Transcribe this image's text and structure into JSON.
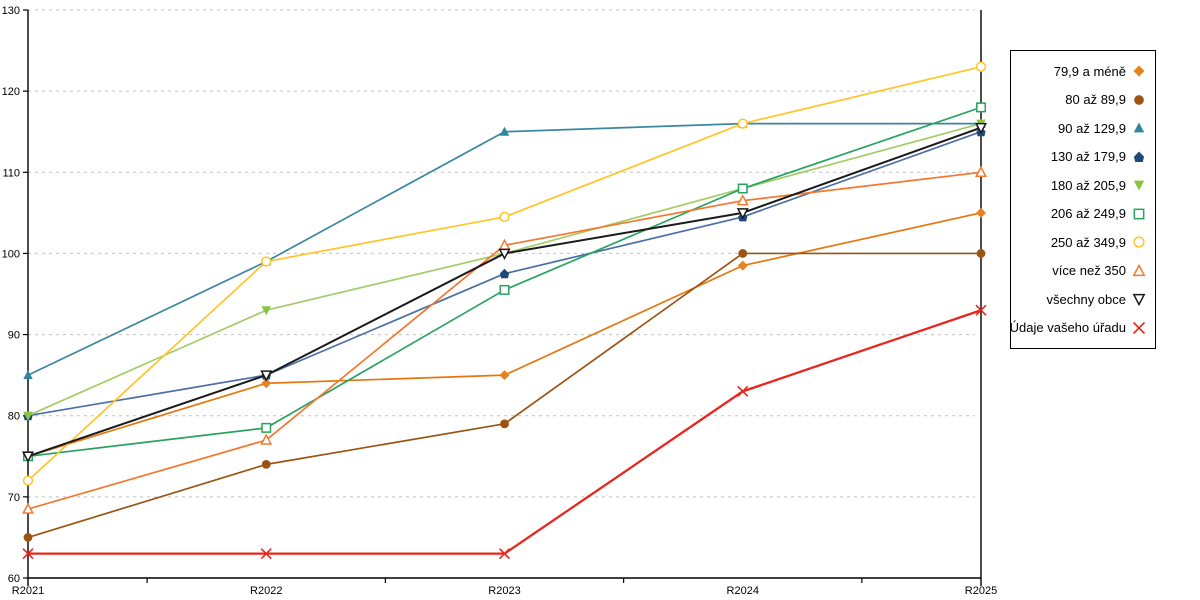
{
  "chart_data": {
    "type": "line",
    "title": "",
    "xlabel": "",
    "ylabel": "",
    "categories": [
      "R2021",
      "R2022",
      "R2023",
      "R2024",
      "R2025"
    ],
    "y_ticks": [
      60,
      70,
      80,
      90,
      100,
      110,
      120,
      130
    ],
    "ylim": [
      60,
      130
    ],
    "grid": "horizontal-dashed",
    "grid_color": "#c0c0c0",
    "axis_color": "#000000",
    "legend_position": "right",
    "series": [
      {
        "name": "79,9 a méně",
        "marker": "diamond",
        "filled": true,
        "color": "#E5770E",
        "marker_color": "#E8821E",
        "line_width": 1.7,
        "values": [
          75,
          84,
          85,
          98.5,
          105
        ]
      },
      {
        "name": "80 až 89,9",
        "marker": "circle",
        "filled": true,
        "color": "#9C5312",
        "marker_color": "#9C5312",
        "line_width": 1.7,
        "values": [
          65,
          74,
          79,
          100,
          100
        ]
      },
      {
        "name": "90 až 129,9",
        "marker": "triangle-up",
        "filled": true,
        "color": "#3A87A0",
        "marker_color": "#31859C",
        "line_width": 1.7,
        "values": [
          85,
          99,
          115,
          116,
          116
        ]
      },
      {
        "name": "130 až 179,9",
        "marker": "pentagon",
        "filled": true,
        "color": "#4A6FA5",
        "marker_color": "#1F497D",
        "line_width": 1.7,
        "values": [
          80,
          85,
          97.5,
          104.5,
          115
        ]
      },
      {
        "name": "180 až 205,9",
        "marker": "triangle-down",
        "filled": true,
        "color": "#A3CC66",
        "marker_color": "#8BC540",
        "line_width": 1.7,
        "values": [
          80,
          93,
          100,
          108,
          116
        ]
      },
      {
        "name": "206 až 249,9",
        "marker": "square",
        "filled": false,
        "color": "#27A35F",
        "marker_color": "#27A35F",
        "line_width": 1.7,
        "values": [
          75,
          78.5,
          95.5,
          108,
          118
        ]
      },
      {
        "name": "250 až 349,9",
        "marker": "circle",
        "filled": false,
        "color": "#FFC428",
        "marker_color": "#FFC428",
        "line_width": 1.7,
        "values": [
          72,
          99,
          104.5,
          116,
          123
        ]
      },
      {
        "name": "více než 350",
        "marker": "triangle-up",
        "filled": false,
        "color": "#F5772E",
        "marker_color": "#F5772E",
        "line_width": 1.7,
        "values": [
          68.5,
          77,
          101,
          106.5,
          110
        ]
      },
      {
        "name": "všechny obce",
        "marker": "triangle-down",
        "filled": false,
        "color": "#1A1A1A",
        "marker_color": "#1A1A1A",
        "line_width": 2.0,
        "values": [
          75,
          85,
          100,
          105,
          115.5
        ]
      },
      {
        "name": "Údaje vašeho úřadu",
        "marker": "x",
        "filled": false,
        "color": "#E8261F",
        "marker_color": "#E8261F",
        "line_width": 2.3,
        "values": [
          63,
          63,
          63,
          83,
          93
        ]
      }
    ]
  }
}
